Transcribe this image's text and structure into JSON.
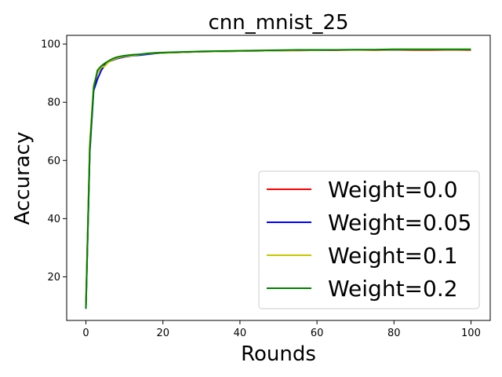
{
  "chart_data": {
    "type": "line",
    "title": "cnn_mnist_25",
    "xlabel": "Rounds",
    "ylabel": "Accuracy",
    "xlim": [
      -5,
      105
    ],
    "ylim": [
      5,
      103
    ],
    "xticks": [
      0,
      20,
      40,
      60,
      80,
      100
    ],
    "yticks": [
      20,
      40,
      60,
      80,
      100
    ],
    "grid": false,
    "legend_position": "lower-right",
    "x": [
      0,
      1,
      2,
      3,
      4,
      5,
      6,
      7,
      8,
      9,
      10,
      12,
      14,
      16,
      18,
      20,
      25,
      30,
      35,
      40,
      45,
      50,
      55,
      60,
      65,
      70,
      75,
      80,
      85,
      90,
      95,
      100
    ],
    "series": [
      {
        "name": "Weight=0.0",
        "color": "#ff0000",
        "values": [
          10,
          65,
          85,
          90,
          92,
          93,
          94,
          94.5,
          95,
          95.3,
          95.6,
          96,
          96.3,
          96.6,
          96.8,
          97,
          97.2,
          97.4,
          97.5,
          97.6,
          97.7,
          97.8,
          97.8,
          97.9,
          97.9,
          98,
          97.9,
          98,
          97.9,
          97.9,
          98,
          97.9
        ]
      },
      {
        "name": "Weight=0.05",
        "color": "#0000ff",
        "values": [
          9,
          63,
          84,
          88,
          91,
          93,
          94,
          94.5,
          95,
          95.3,
          95.6,
          96,
          96.2,
          96.5,
          96.8,
          97,
          97.2,
          97.4,
          97.5,
          97.6,
          97.7,
          97.8,
          97.9,
          97.9,
          98,
          98,
          98,
          98,
          98.1,
          98.1,
          98.1,
          98.1
        ]
      },
      {
        "name": "Weight=0.1",
        "color": "#c8c800",
        "values": [
          10,
          66,
          86,
          90,
          92,
          92.5,
          94,
          94.6,
          95.2,
          95.5,
          95.8,
          96.1,
          96.4,
          96.7,
          96.9,
          97,
          97.2,
          97.4,
          97.5,
          97.6,
          97.7,
          97.8,
          97.9,
          97.9,
          98,
          98,
          98,
          98.1,
          98.1,
          98.1,
          98.1,
          98.1
        ]
      },
      {
        "name": "Weight=0.2",
        "color": "#008000",
        "values": [
          9,
          64,
          85,
          91,
          92.5,
          93.5,
          94.3,
          95,
          95.5,
          95.8,
          96,
          96.3,
          96.5,
          96.8,
          97,
          97.1,
          97.3,
          97.5,
          97.6,
          97.7,
          97.8,
          97.9,
          98,
          98,
          98,
          98.1,
          98.1,
          98.2,
          98.2,
          98.2,
          98.2,
          98.2
        ]
      }
    ]
  }
}
